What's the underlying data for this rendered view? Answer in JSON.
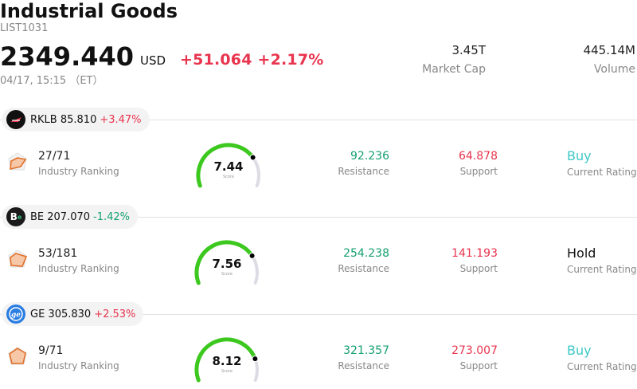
{
  "header": {
    "title": "Industrial Goods",
    "code": "LIST1031",
    "price": "2349.440",
    "currency": "USD",
    "change": "+51.064 +2.17%",
    "timestamp": "04/17, 15:15 （ET）",
    "market_cap_value": "3.45T",
    "market_cap_label": "Market Cap",
    "volume_value": "445.14M",
    "volume_label": "Volume"
  },
  "stocks": [
    {
      "ticker_price": "RKLB 85.810",
      "change": "+3.47%",
      "direction": "up",
      "rank": "27/71",
      "rank_label": "Industry Ranking",
      "score": "7.44",
      "score_level": 0.744,
      "score_label": "Score",
      "resistance": "92.236",
      "resistance_label": "Resistance",
      "support": "64.878",
      "support_label": "Support",
      "rating": "Buy",
      "rating_label": "Current Rating"
    },
    {
      "ticker_price": "BE 207.070",
      "change": "-1.42%",
      "direction": "down",
      "rank": "53/181",
      "rank_label": "Industry Ranking",
      "score": "7.56",
      "score_level": 0.756,
      "score_label": "Score",
      "resistance": "254.238",
      "resistance_label": "Resistance",
      "support": "141.193",
      "support_label": "Support",
      "rating": "Hold",
      "rating_label": "Current Rating"
    },
    {
      "ticker_price": "GE 305.830",
      "change": "+2.53%",
      "direction": "up",
      "rank": "9/71",
      "rank_label": "Industry Ranking",
      "score": "8.12",
      "score_level": 0.812,
      "score_label": "Score",
      "resistance": "321.357",
      "resistance_label": "Resistance",
      "support": "273.007",
      "support_label": "Support",
      "rating": "Buy",
      "rating_label": "Current Rating"
    }
  ],
  "colors": {
    "up": "#e8344e",
    "down": "#14a06f",
    "buy": "#3ec8c8",
    "gauge_green": "#3cc81e",
    "gauge_track": "#dcdce4"
  }
}
